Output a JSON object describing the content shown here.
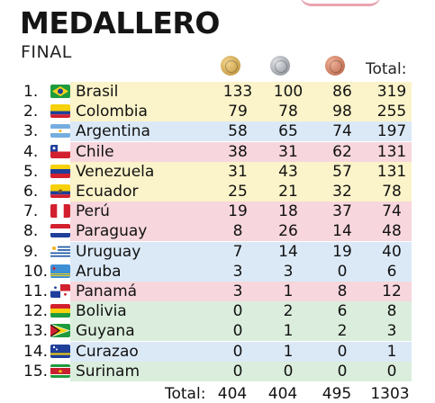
{
  "header": {
    "title": "MEDALLERO",
    "subtitle": "FINAL",
    "total_label": "Total:"
  },
  "medals": [
    "gold-medal-icon",
    "silver-medal-icon",
    "bronze-medal-icon"
  ],
  "rows": [
    {
      "rank": "1.",
      "country": "Brasil",
      "gold": "133",
      "silver": "100",
      "bronze": "86",
      "total": "319",
      "band": "#fbf3c9"
    },
    {
      "rank": "2.",
      "country": "Colombia",
      "gold": "79",
      "silver": "78",
      "bronze": "98",
      "total": "255",
      "band": "#fbf3c9"
    },
    {
      "rank": "3.",
      "country": "Argentina",
      "gold": "58",
      "silver": "65",
      "bronze": "74",
      "total": "197",
      "band": "#dbe9f7"
    },
    {
      "rank": "4.",
      "country": "Chile",
      "gold": "38",
      "silver": "31",
      "bronze": "62",
      "total": "131",
      "band": "#f7d6dd"
    },
    {
      "rank": "5.",
      "country": "Venezuela",
      "gold": "31",
      "silver": "43",
      "bronze": "57",
      "total": "131",
      "band": "#fbf3c9"
    },
    {
      "rank": "6.",
      "country": "Ecuador",
      "gold": "25",
      "silver": "21",
      "bronze": "32",
      "total": "78",
      "band": "#fbf3c9"
    },
    {
      "rank": "7.",
      "country": "Perú",
      "gold": "19",
      "silver": "18",
      "bronze": "37",
      "total": "74",
      "band": "#f7d6dd"
    },
    {
      "rank": "8.",
      "country": "Paraguay",
      "gold": "8",
      "silver": "26",
      "bronze": "14",
      "total": "48",
      "band": "#f7d6dd"
    },
    {
      "rank": "9.",
      "country": "Uruguay",
      "gold": "7",
      "silver": "14",
      "bronze": "19",
      "total": "40",
      "band": "#dbe9f7"
    },
    {
      "rank": "10.",
      "country": "Aruba",
      "gold": "3",
      "silver": "3",
      "bronze": "0",
      "total": "6",
      "band": "#dbe9f7"
    },
    {
      "rank": "11.",
      "country": "Panamá",
      "gold": "3",
      "silver": "1",
      "bronze": "8",
      "total": "12",
      "band": "#f7d6dd"
    },
    {
      "rank": "12.",
      "country": "Bolivia",
      "gold": "0",
      "silver": "2",
      "bronze": "6",
      "total": "8",
      "band": "#dbeedd"
    },
    {
      "rank": "13.",
      "country": "Guyana",
      "gold": "0",
      "silver": "1",
      "bronze": "2",
      "total": "3",
      "band": "#dbeedd"
    },
    {
      "rank": "14.",
      "country": "Curazao",
      "gold": "0",
      "silver": "1",
      "bronze": "0",
      "total": "1",
      "band": "#dbe9f7"
    },
    {
      "rank": "15.",
      "country": "Surinam",
      "gold": "0",
      "silver": "0",
      "bronze": "0",
      "total": "0",
      "band": "#dbeedd"
    }
  ],
  "totals": {
    "label": "Total:",
    "gold": "404",
    "silver": "404",
    "bronze": "495",
    "total": "1303"
  }
}
